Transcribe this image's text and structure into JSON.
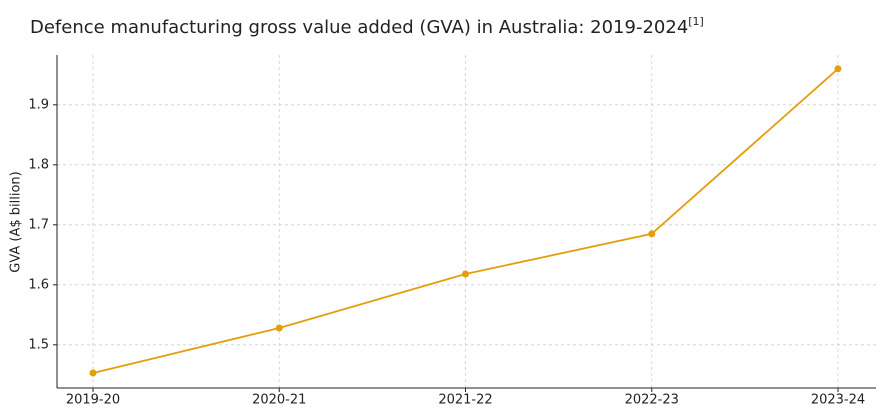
{
  "chart_data": {
    "type": "line",
    "title": "Defence manufacturing gross value added (GVA) in Australia: 2019-2024",
    "title_superscript": "[1]",
    "y_label": "GVA (A$ billion)",
    "categories": [
      "2019-20",
      "2020-21",
      "2021-22",
      "2022-23",
      "2023-24"
    ],
    "series": [
      {
        "name": "GVA",
        "color": "#e49e0c",
        "values": [
          1.453,
          1.528,
          1.618,
          1.685,
          1.96
        ]
      }
    ],
    "ylim": [
      1.428,
      1.983
    ],
    "yticks": [
      1.5,
      1.6,
      1.7,
      1.8,
      1.9
    ],
    "grid": true
  }
}
